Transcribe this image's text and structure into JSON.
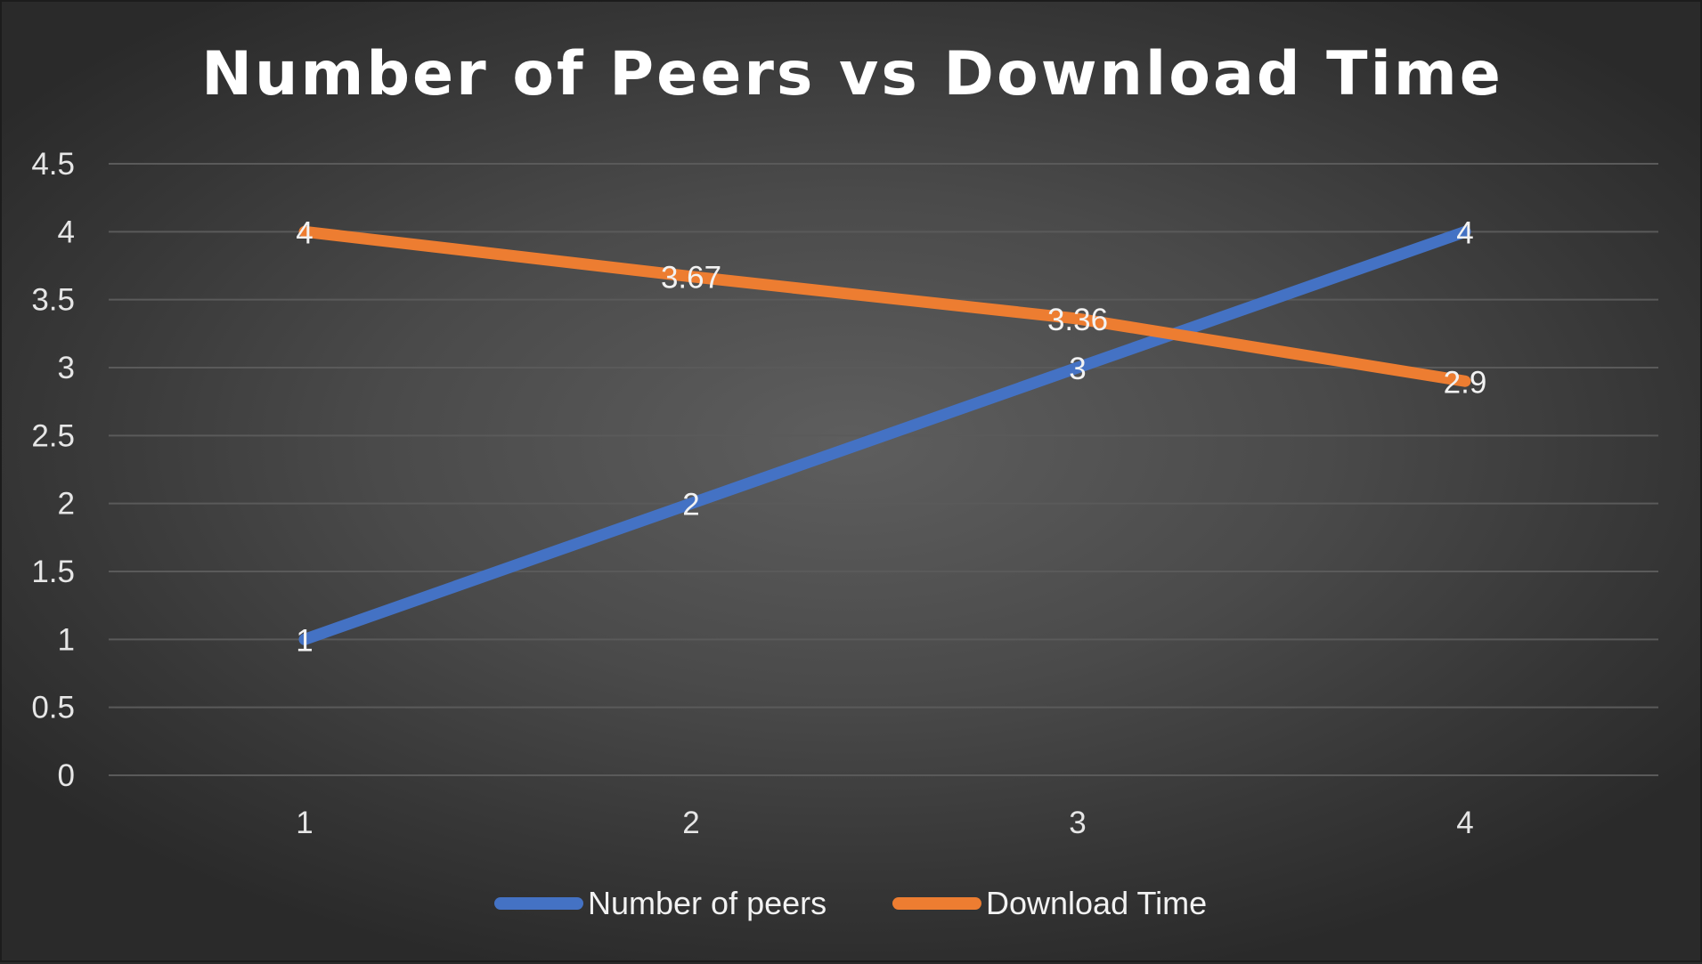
{
  "chart_data": {
    "type": "line",
    "title": "Number of Peers vs Download Time",
    "categories": [
      "1",
      "2",
      "3",
      "4"
    ],
    "ylim": [
      0,
      4.5
    ],
    "y_ticks": [
      "0",
      "0.5",
      "1",
      "1.5",
      "2",
      "2.5",
      "3",
      "3.5",
      "4",
      "4.5"
    ],
    "grid": true,
    "legend_position": "bottom",
    "series": [
      {
        "name": "Number of peers",
        "color": "#4472c4",
        "values": [
          1,
          2,
          3,
          4
        ],
        "labels": [
          "1",
          "2",
          "3",
          "4"
        ]
      },
      {
        "name": "Download Time",
        "color": "#ed7d31",
        "values": [
          4,
          3.67,
          3.36,
          2.9
        ],
        "labels": [
          "4",
          "3.67",
          "3.36",
          "2.9"
        ]
      }
    ]
  }
}
